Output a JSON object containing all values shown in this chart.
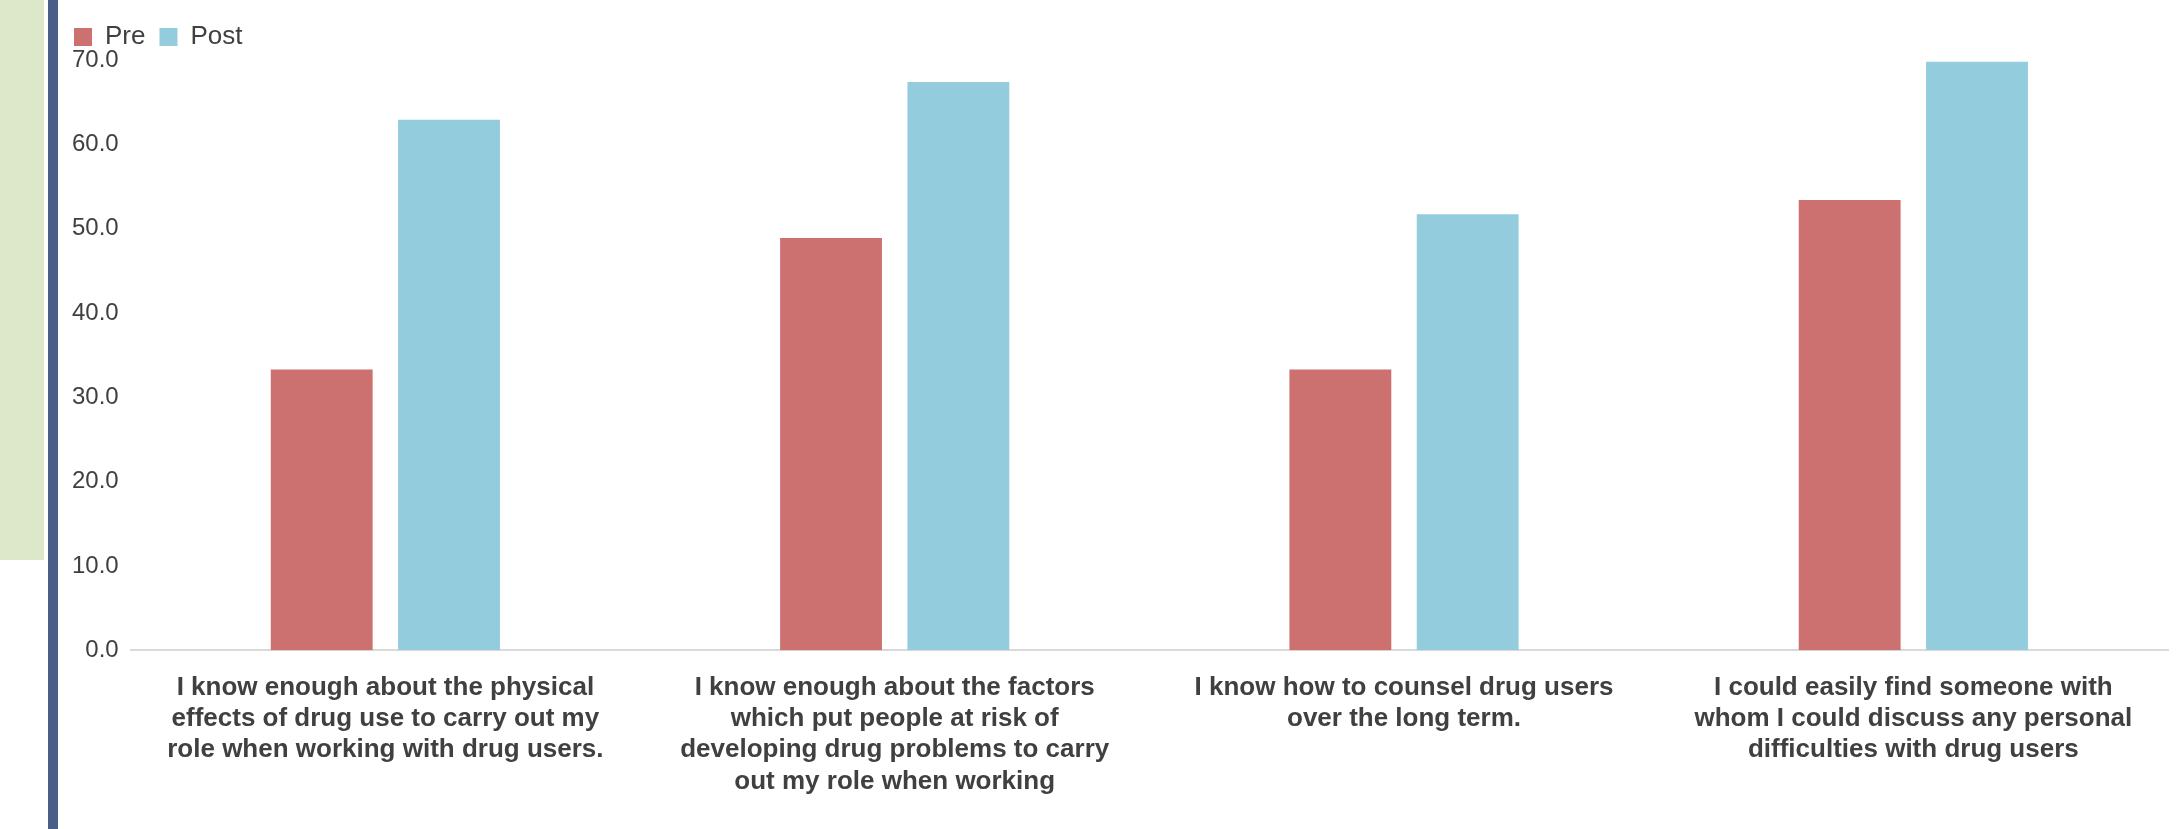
{
  "chart_data": {
    "type": "bar",
    "categories": [
      "I know enough about the physical effects of drug use to carry out my role when working with drug users.",
      "I know enough about the factors which put people at risk of developing drug problems to carry out my role when working",
      "I know how to counsel drug users over the long term.",
      "I could easily find someone with whom I could discuss any personal difficulties with drug users"
    ],
    "series": [
      {
        "name": "Pre",
        "color": "#cd7070",
        "values": [
          33.3,
          48.9,
          33.3,
          53.4
        ]
      },
      {
        "name": "Post",
        "color": "#93cddd",
        "values": [
          62.9,
          67.4,
          51.7,
          69.8
        ]
      }
    ],
    "ylim": [
      0,
      70
    ],
    "yticks": [
      {
        "value": 0,
        "label": "0.0"
      },
      {
        "value": 10,
        "label": "10.0"
      },
      {
        "value": 20,
        "label": "20.0"
      },
      {
        "value": 30,
        "label": "30.0"
      },
      {
        "value": 40,
        "label": "40.0"
      },
      {
        "value": 50,
        "label": "50.0"
      },
      {
        "value": 60,
        "label": "60.0"
      },
      {
        "value": 70,
        "label": "70.0"
      }
    ],
    "grid": false,
    "legend": "top left"
  }
}
